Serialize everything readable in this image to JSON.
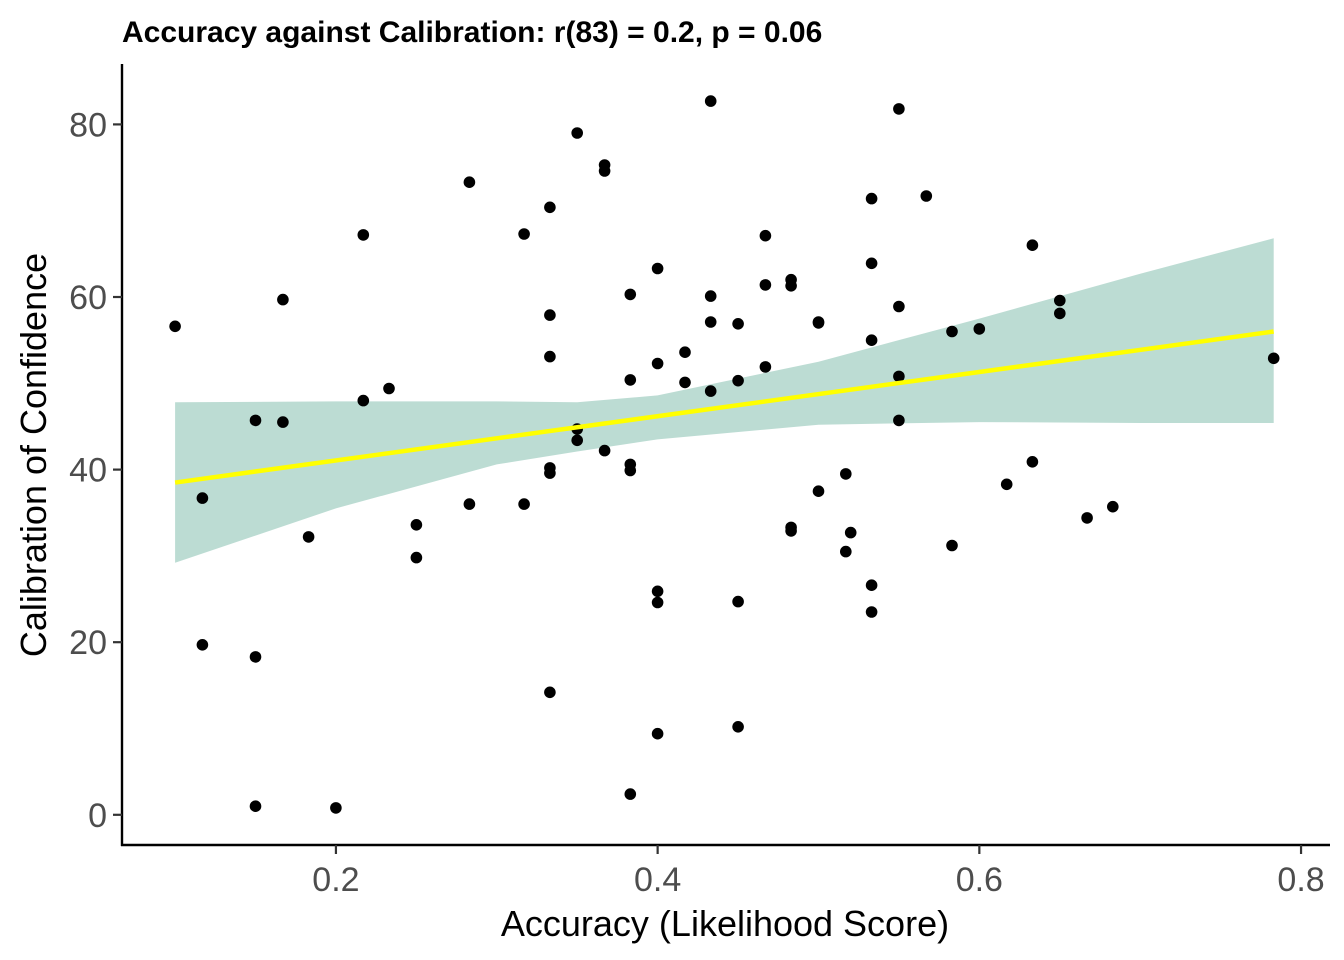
{
  "chart_data": {
    "type": "scatter",
    "title": "Accuracy against Calibration: r(83) = 0.2, p = 0.06",
    "xlabel": "Accuracy (Likelihood Score)",
    "ylabel": "Calibration of Confidence",
    "xlim": [
      0.067,
      0.818
    ],
    "ylim": [
      -3.5,
      87
    ],
    "x_ticks": [
      0.2,
      0.4,
      0.6,
      0.8
    ],
    "x_tick_labels": [
      "0.2",
      "0.4",
      "0.6",
      "0.8"
    ],
    "y_ticks": [
      0,
      20,
      40,
      60,
      80
    ],
    "y_tick_labels": [
      "0",
      "20",
      "40",
      "60",
      "80"
    ],
    "grid": false,
    "point_color": "#000000",
    "fit_line": {
      "color": "#ffff00",
      "points": [
        [
          0.1,
          38.5
        ],
        [
          0.783,
          56.0
        ]
      ]
    },
    "confidence_band": {
      "color": "#8fc5b5",
      "opacity": 0.6,
      "x": [
        0.1,
        0.2,
        0.3,
        0.35,
        0.4,
        0.5,
        0.6,
        0.7,
        0.783
      ],
      "upper": [
        47.8,
        47.9,
        47.9,
        47.8,
        48.6,
        52.5,
        57.5,
        62.7,
        66.8
      ],
      "lower": [
        29.2,
        35.5,
        40.6,
        42.1,
        43.5,
        45.2,
        45.5,
        45.4,
        45.4
      ]
    },
    "points": [
      [
        0.1,
        56.6
      ],
      [
        0.117,
        36.7
      ],
      [
        0.117,
        19.7
      ],
      [
        0.15,
        45.7
      ],
      [
        0.15,
        18.3
      ],
      [
        0.15,
        1.0
      ],
      [
        0.167,
        59.7
      ],
      [
        0.167,
        45.5
      ],
      [
        0.183,
        32.2
      ],
      [
        0.2,
        0.8
      ],
      [
        0.217,
        67.2
      ],
      [
        0.217,
        48.0
      ],
      [
        0.233,
        49.4
      ],
      [
        0.25,
        33.6
      ],
      [
        0.25,
        29.8
      ],
      [
        0.283,
        73.3
      ],
      [
        0.283,
        36.0
      ],
      [
        0.317,
        67.3
      ],
      [
        0.317,
        36.0
      ],
      [
        0.333,
        70.4
      ],
      [
        0.333,
        57.9
      ],
      [
        0.333,
        53.1
      ],
      [
        0.333,
        40.2
      ],
      [
        0.333,
        39.6
      ],
      [
        0.333,
        14.2
      ],
      [
        0.35,
        79.0
      ],
      [
        0.35,
        44.7
      ],
      [
        0.35,
        43.4
      ],
      [
        0.367,
        75.3
      ],
      [
        0.367,
        74.6
      ],
      [
        0.367,
        42.2
      ],
      [
        0.383,
        60.3
      ],
      [
        0.383,
        50.4
      ],
      [
        0.383,
        40.6
      ],
      [
        0.383,
        39.9
      ],
      [
        0.383,
        2.4
      ],
      [
        0.4,
        63.3
      ],
      [
        0.4,
        52.3
      ],
      [
        0.4,
        25.9
      ],
      [
        0.4,
        24.6
      ],
      [
        0.4,
        9.4
      ],
      [
        0.417,
        53.6
      ],
      [
        0.417,
        50.1
      ],
      [
        0.433,
        82.7
      ],
      [
        0.433,
        60.1
      ],
      [
        0.433,
        57.1
      ],
      [
        0.433,
        49.1
      ],
      [
        0.45,
        56.9
      ],
      [
        0.45,
        50.3
      ],
      [
        0.45,
        24.7
      ],
      [
        0.45,
        10.2
      ],
      [
        0.467,
        67.1
      ],
      [
        0.467,
        61.4
      ],
      [
        0.467,
        51.9
      ],
      [
        0.483,
        62.0
      ],
      [
        0.483,
        61.3
      ],
      [
        0.483,
        33.3
      ],
      [
        0.483,
        32.9
      ],
      [
        0.5,
        57.1
      ],
      [
        0.5,
        57.0
      ],
      [
        0.5,
        37.5
      ],
      [
        0.517,
        39.5
      ],
      [
        0.517,
        30.5
      ],
      [
        0.52,
        32.7
      ],
      [
        0.533,
        71.4
      ],
      [
        0.533,
        63.9
      ],
      [
        0.533,
        55.0
      ],
      [
        0.533,
        26.6
      ],
      [
        0.533,
        23.5
      ],
      [
        0.55,
        81.8
      ],
      [
        0.55,
        58.9
      ],
      [
        0.55,
        50.8
      ],
      [
        0.55,
        45.7
      ],
      [
        0.567,
        71.7
      ],
      [
        0.583,
        56.0
      ],
      [
        0.583,
        31.2
      ],
      [
        0.6,
        56.3
      ],
      [
        0.617,
        38.3
      ],
      [
        0.633,
        66.0
      ],
      [
        0.633,
        40.9
      ],
      [
        0.65,
        59.6
      ],
      [
        0.65,
        58.1
      ],
      [
        0.667,
        34.4
      ],
      [
        0.683,
        35.7
      ],
      [
        0.783,
        52.9
      ]
    ]
  }
}
